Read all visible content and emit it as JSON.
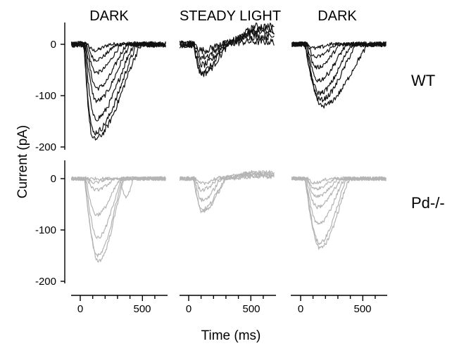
{
  "chart_data": {
    "type": "line",
    "panel_titles": [
      "DARK",
      "STEADY LIGHT",
      "DARK"
    ],
    "row_labels": [
      "WT",
      "Pd-/-"
    ],
    "xlabel": "Time (ms)",
    "ylabel": "Current (pA)",
    "x_ticks": [
      0,
      500
    ],
    "xlim": [
      -80,
      700
    ],
    "y_ticks": [
      0,
      -100,
      -200
    ],
    "ylim_wt": [
      -210,
      40
    ],
    "ylim_pd": [
      -205,
      35
    ],
    "colors": {
      "wt": "#111111",
      "pd": "#b4b4b4"
    },
    "panels": [
      {
        "row": "WT",
        "condition": "DARK",
        "traces": [
          {
            "peak": -12,
            "t_onset": 60,
            "t_peak": 110,
            "t_end": 240,
            "noise": 4
          },
          {
            "peak": -30,
            "t_onset": 60,
            "t_peak": 120,
            "t_end": 300,
            "noise": 4
          },
          {
            "peak": -55,
            "t_onset": 50,
            "t_peak": 130,
            "t_end": 340,
            "noise": 4
          },
          {
            "peak": -85,
            "t_onset": 45,
            "t_peak": 135,
            "t_end": 380,
            "noise": 5
          },
          {
            "peak": -110,
            "t_onset": 40,
            "t_peak": 130,
            "t_end": 410,
            "noise": 5
          },
          {
            "peak": -145,
            "t_onset": 35,
            "t_peak": 120,
            "t_end": 440,
            "noise": 6
          },
          {
            "peak": -172,
            "t_onset": 30,
            "t_peak": 110,
            "t_end": 470,
            "noise": 6
          },
          {
            "peak": -185,
            "t_onset": 30,
            "t_peak": 105,
            "t_end": 500,
            "noise": 6
          }
        ]
      },
      {
        "row": "WT",
        "condition": "STEADY LIGHT",
        "traces": [
          {
            "peak": -12,
            "t_onset": 50,
            "t_peak": 110,
            "t_end": 260,
            "noise": 7,
            "drift": 5
          },
          {
            "peak": -25,
            "t_onset": 50,
            "t_peak": 110,
            "t_end": 280,
            "noise": 7,
            "drift": 15
          },
          {
            "peak": -40,
            "t_onset": 45,
            "t_peak": 110,
            "t_end": 300,
            "noise": 7,
            "drift": 22
          },
          {
            "peak": -52,
            "t_onset": 40,
            "t_peak": 110,
            "t_end": 320,
            "noise": 7,
            "drift": 28
          },
          {
            "peak": -57,
            "t_onset": 40,
            "t_peak": 105,
            "t_end": 330,
            "noise": 7,
            "drift": 35
          }
        ]
      },
      {
        "row": "WT",
        "condition": "DARK",
        "traces": [
          {
            "peak": -8,
            "t_onset": 60,
            "t_peak": 110,
            "t_end": 240,
            "noise": 4
          },
          {
            "peak": -25,
            "t_onset": 55,
            "t_peak": 120,
            "t_end": 290,
            "noise": 4
          },
          {
            "peak": -45,
            "t_onset": 50,
            "t_peak": 130,
            "t_end": 330,
            "noise": 4
          },
          {
            "peak": -70,
            "t_onset": 45,
            "t_peak": 140,
            "t_end": 380,
            "noise": 5
          },
          {
            "peak": -95,
            "t_onset": 40,
            "t_peak": 150,
            "t_end": 420,
            "noise": 5
          },
          {
            "peak": -108,
            "t_onset": 35,
            "t_peak": 160,
            "t_end": 460,
            "noise": 5
          },
          {
            "peak": -120,
            "t_onset": 35,
            "t_peak": 170,
            "t_end": 560,
            "noise": 5
          }
        ]
      },
      {
        "row": "Pd-/-",
        "condition": "DARK",
        "traces": [
          {
            "peak": -8,
            "t_onset": 60,
            "t_peak": 110,
            "t_end": 230,
            "noise": 3
          },
          {
            "peak": -22,
            "t_onset": 55,
            "t_peak": 125,
            "t_end": 290,
            "noise": 3
          },
          {
            "peak": -35,
            "t_onset": 320,
            "t_peak": 370,
            "t_end": 430,
            "noise": 3
          },
          {
            "peak": -70,
            "t_onset": 45,
            "t_peak": 130,
            "t_end": 330,
            "noise": 4
          },
          {
            "peak": -115,
            "t_onset": 40,
            "t_peak": 140,
            "t_end": 340,
            "noise": 4
          },
          {
            "peak": -150,
            "t_onset": 35,
            "t_peak": 140,
            "t_end": 350,
            "noise": 4
          },
          {
            "peak": -160,
            "t_onset": 35,
            "t_peak": 145,
            "t_end": 360,
            "noise": 4
          }
        ]
      },
      {
        "row": "Pd-/-",
        "condition": "STEADY LIGHT",
        "traces": [
          {
            "peak": -10,
            "t_onset": 50,
            "t_peak": 100,
            "t_end": 220,
            "noise": 4,
            "drift": 5
          },
          {
            "peak": -22,
            "t_onset": 50,
            "t_peak": 105,
            "t_end": 250,
            "noise": 4,
            "drift": 10
          },
          {
            "peak": -42,
            "t_onset": 45,
            "t_peak": 110,
            "t_end": 270,
            "noise": 4,
            "drift": 8
          },
          {
            "peak": -60,
            "t_onset": 40,
            "t_peak": 110,
            "t_end": 300,
            "noise": 4,
            "drift": 12
          },
          {
            "peak": -65,
            "t_onset": 40,
            "t_peak": 110,
            "t_end": 310,
            "noise": 4,
            "drift": 4
          }
        ]
      },
      {
        "row": "Pd-/-",
        "condition": "DARK",
        "traces": [
          {
            "peak": -8,
            "t_onset": 60,
            "t_peak": 110,
            "t_end": 230,
            "noise": 3
          },
          {
            "peak": -20,
            "t_onset": 55,
            "t_peak": 120,
            "t_end": 280,
            "noise": 3
          },
          {
            "peak": -35,
            "t_onset": 50,
            "t_peak": 130,
            "t_end": 310,
            "noise": 3
          },
          {
            "peak": -55,
            "t_onset": 45,
            "t_peak": 135,
            "t_end": 340,
            "noise": 4
          },
          {
            "peak": -88,
            "t_onset": 40,
            "t_peak": 140,
            "t_end": 360,
            "noise": 4
          },
          {
            "peak": -125,
            "t_onset": 40,
            "t_peak": 150,
            "t_end": 380,
            "noise": 4
          },
          {
            "peak": -135,
            "t_onset": 35,
            "t_peak": 155,
            "t_end": 400,
            "noise": 4
          }
        ]
      }
    ]
  }
}
